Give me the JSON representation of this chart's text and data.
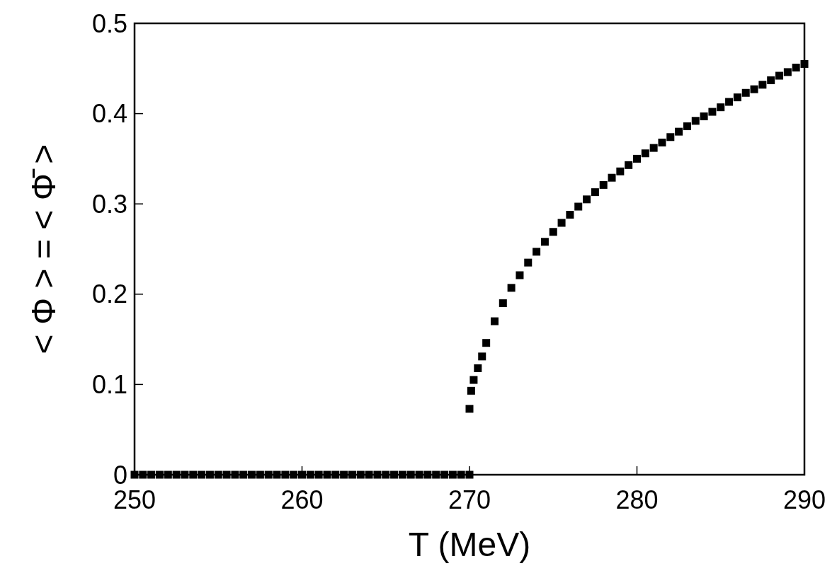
{
  "chart_data": {
    "type": "scatter",
    "xlabel": "T (MeV)",
    "ylabel": "< Φ > = < Φ̄ >",
    "xlim": [
      250,
      290
    ],
    "xticks": [
      250,
      260,
      270,
      280,
      290
    ],
    "ylim": [
      0,
      0.5
    ],
    "yticks": [
      0,
      0.1,
      0.2,
      0.3,
      0.4,
      0.5
    ],
    "marker": "square",
    "grid": false,
    "series": [
      {
        "color": "#000000",
        "x": [
          250,
          250.5,
          251,
          251.5,
          252,
          252.5,
          253,
          253.5,
          254,
          254.5,
          255,
          255.5,
          256,
          256.5,
          257,
          257.5,
          258,
          258.5,
          259,
          259.5,
          260,
          260.5,
          261,
          261.5,
          262,
          262.5,
          263,
          263.5,
          264,
          264.5,
          265,
          265.5,
          266,
          266.5,
          267,
          267.5,
          268,
          268.5,
          269,
          269.5,
          270,
          270,
          270.1,
          270.25,
          270.5,
          270.75,
          271,
          271.5,
          272,
          272.5,
          273,
          273.5,
          274,
          274.5,
          275,
          275.5,
          276,
          276.5,
          277,
          277.5,
          278,
          278.5,
          279,
          279.5,
          280,
          280.5,
          281,
          281.5,
          282,
          282.5,
          283,
          283.5,
          284,
          284.5,
          285,
          285.5,
          286,
          286.5,
          287,
          287.5,
          288,
          288.5,
          289,
          289.5,
          290
        ],
        "values": [
          0,
          0,
          0,
          0,
          0,
          0,
          0,
          0,
          0,
          0,
          0,
          0,
          0,
          0,
          0,
          0,
          0,
          0,
          0,
          0,
          0,
          0,
          0,
          0,
          0,
          0,
          0,
          0,
          0,
          0,
          0,
          0,
          0,
          0,
          0,
          0,
          0,
          0,
          0,
          0,
          0,
          0.073,
          0.093,
          0.105,
          0.118,
          0.131,
          0.146,
          0.17,
          0.19,
          0.207,
          0.221,
          0.235,
          0.247,
          0.258,
          0.269,
          0.279,
          0.288,
          0.297,
          0.305,
          0.313,
          0.321,
          0.329,
          0.336,
          0.343,
          0.35,
          0.356,
          0.362,
          0.368,
          0.374,
          0.38,
          0.386,
          0.392,
          0.397,
          0.402,
          0.407,
          0.413,
          0.418,
          0.423,
          0.427,
          0.432,
          0.437,
          0.442,
          0.446,
          0.451,
          0.455
        ]
      }
    ]
  }
}
